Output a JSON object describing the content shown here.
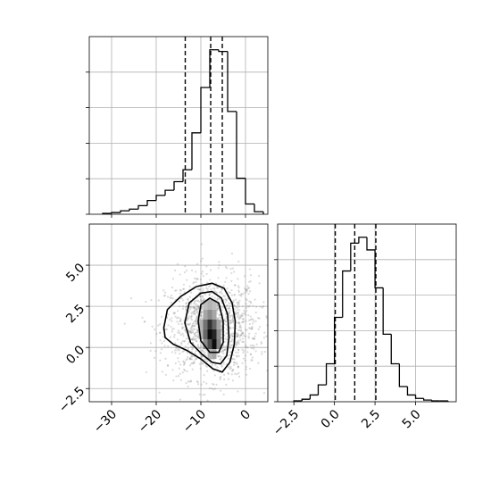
{
  "chart_data": [
    {
      "type": "histogram",
      "panel": "top-left",
      "variable": "x",
      "xlim": [
        -35,
        5
      ],
      "bin_edges": [
        -32,
        -30,
        -28,
        -26,
        -24,
        -22,
        -20,
        -18,
        -16,
        -14,
        -12,
        -10,
        -8,
        -6,
        -4,
        -2,
        0,
        2,
        4
      ],
      "counts": [
        1,
        2,
        4,
        6,
        10,
        16,
        22,
        28,
        38,
        52,
        95,
        148,
        192,
        190,
        120,
        42,
        12,
        3
      ],
      "quantile_lines": [
        -13.5,
        -7.8,
        -5.2
      ],
      "grid": true,
      "ytick_count": 5,
      "yticklabels_shown": false
    },
    {
      "type": "histogram2d",
      "panel": "bottom-left",
      "variables": [
        "x",
        "y"
      ],
      "xlim": [
        -35,
        5
      ],
      "ylim": [
        -3.3,
        7.5
      ],
      "xticks": [
        -30,
        -20,
        -10,
        0
      ],
      "xticklabels": [
        "−30",
        "−20",
        "−10",
        "0"
      ],
      "yticks": [
        -2.5,
        0.0,
        2.5,
        5.0
      ],
      "yticklabels": [
        "−2.5",
        "0.0",
        "2.5",
        "5.0"
      ],
      "density_center": [
        -7.5,
        1.2
      ],
      "contours": [
        [
          [
            -18.3,
            1.2
          ],
          [
            -17.5,
            2.3
          ],
          [
            -14.5,
            3.1
          ],
          [
            -11.0,
            3.7
          ],
          [
            -7.5,
            3.9
          ],
          [
            -4.8,
            3.6
          ],
          [
            -3.0,
            2.7
          ],
          [
            -2.3,
            1.6
          ],
          [
            -2.5,
            0.2
          ],
          [
            -3.5,
            -0.9
          ],
          [
            -5.2,
            -1.5
          ],
          [
            -7.3,
            -1.3
          ],
          [
            -10.0,
            -0.7
          ],
          [
            -13.0,
            -0.2
          ],
          [
            -16.2,
            0.2
          ],
          [
            -18.0,
            0.6
          ],
          [
            -18.3,
            1.2
          ]
        ],
        [
          [
            -13.6,
            1.5
          ],
          [
            -12.6,
            2.7
          ],
          [
            -10.0,
            3.3
          ],
          [
            -7.5,
            3.4
          ],
          [
            -5.4,
            3.0
          ],
          [
            -4.0,
            2.0
          ],
          [
            -3.7,
            0.6
          ],
          [
            -4.2,
            -0.5
          ],
          [
            -5.6,
            -1.0
          ],
          [
            -7.5,
            -0.9
          ],
          [
            -9.8,
            -0.4
          ],
          [
            -12.3,
            0.3
          ],
          [
            -13.6,
            1.5
          ]
        ],
        [
          [
            -10.6,
            1.6
          ],
          [
            -10.0,
            2.6
          ],
          [
            -8.0,
            3.0
          ],
          [
            -6.0,
            2.7
          ],
          [
            -5.0,
            1.6
          ],
          [
            -5.0,
            0.3
          ],
          [
            -6.0,
            -0.3
          ],
          [
            -8.0,
            -0.3
          ],
          [
            -10.0,
            0.4
          ],
          [
            -10.6,
            1.6
          ]
        ]
      ],
      "grid": true
    },
    {
      "type": "histogram",
      "panel": "bottom-right",
      "variable": "y",
      "xlim": [
        -3.5,
        7.5
      ],
      "xticks": [
        -2.5,
        0.0,
        2.5,
        5.0
      ],
      "xticklabels": [
        "−2.5",
        "0.0",
        "2.5",
        "5.0"
      ],
      "bin_edges": [
        -2.5,
        -2.0,
        -1.5,
        -1.0,
        -0.5,
        0.0,
        0.5,
        1.0,
        1.5,
        2.0,
        2.5,
        3.0,
        3.5,
        4.0,
        4.5,
        5.0,
        5.5,
        6.0,
        6.5,
        7.0
      ],
      "counts": [
        1,
        3,
        8,
        20,
        45,
        100,
        155,
        188,
        195,
        180,
        135,
        80,
        45,
        18,
        8,
        4,
        2,
        1,
        1
      ],
      "quantile_lines": [
        0.05,
        1.25,
        2.55
      ],
      "grid": true,
      "ytick_count": 5,
      "yticklabels_shown": false
    }
  ]
}
